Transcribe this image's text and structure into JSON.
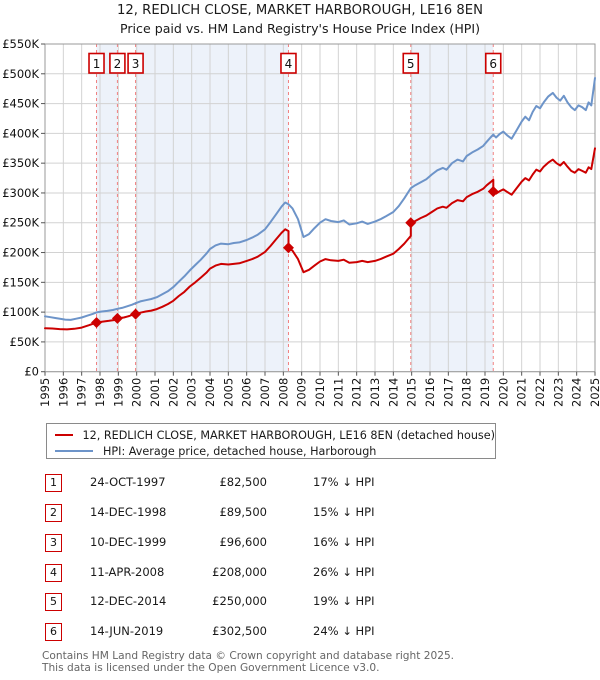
{
  "page": {
    "title": "12, REDLICH CLOSE, MARKET HARBOROUGH, LE16 8EN",
    "subtitle": "Price paid vs. HM Land Registry's House Price Index (HPI)"
  },
  "footer": {
    "line1": "Contains HM Land Registry data © Crown copyright and database right 2025.",
    "line2": "This data is licensed under the Open Government Licence v3.0."
  },
  "chart_data": {
    "type": "line",
    "title": "12, REDLICH CLOSE, MARKET HARBOROUGH, LE16 8EN",
    "subtitle": "Price paid vs. HM Land Registry's House Price Index (HPI)",
    "x_axis": {
      "years": [
        1995,
        1996,
        1997,
        1998,
        1999,
        2000,
        2001,
        2002,
        2003,
        2004,
        2005,
        2006,
        2007,
        2008,
        2009,
        2010,
        2011,
        2012,
        2013,
        2014,
        2015,
        2016,
        2017,
        2018,
        2019,
        2020,
        2021,
        2022,
        2023,
        2024,
        2025
      ],
      "range": [
        1995,
        2025
      ]
    },
    "y_axis": {
      "labels": [
        "£0",
        "£50K",
        "£100K",
        "£150K",
        "£200K",
        "£250K",
        "£300K",
        "£350K",
        "£400K",
        "£450K",
        "£500K",
        "£550K"
      ],
      "min_k": 0,
      "max_k": 550,
      "step_k": 50,
      "grid": true
    },
    "colors": {
      "property_line": "#cc0000",
      "hpi_line": "#6d94c9",
      "sale_marker": "#cc0000",
      "sale_dashed_line": "#f08080",
      "ownership_band": "#edf2fa",
      "grid_line": "#d2d2d2",
      "frame": "#999999",
      "badge_border": "#cc0000",
      "footer_text": "#666666"
    },
    "legend_position": "below-axis",
    "series": [
      {
        "name": "12, REDLICH CLOSE, MARKET HARBOROUGH, LE16 8EN (detached house)",
        "color_key": "property_line",
        "points": [
          [
            1995.0,
            73
          ],
          [
            1995.4,
            72.5
          ],
          [
            1995.8,
            71.5
          ],
          [
            1996.2,
            71
          ],
          [
            1996.6,
            72
          ],
          [
            1997.0,
            74
          ],
          [
            1997.4,
            78
          ],
          [
            1997.81,
            82.5
          ],
          [
            1998.1,
            84
          ],
          [
            1998.5,
            85.5
          ],
          [
            1998.95,
            87.5
          ],
          [
            1998.95,
            89.5
          ],
          [
            1999.3,
            91
          ],
          [
            1999.6,
            93.5
          ],
          [
            1999.94,
            97.5
          ],
          [
            1999.94,
            96.6
          ],
          [
            2000.2,
            99
          ],
          [
            2000.5,
            101
          ],
          [
            2000.8,
            102.5
          ],
          [
            2001.1,
            105
          ],
          [
            2001.4,
            109
          ],
          [
            2001.7,
            113.5
          ],
          [
            2002.0,
            119
          ],
          [
            2002.3,
            127
          ],
          [
            2002.6,
            134
          ],
          [
            2002.9,
            143
          ],
          [
            2003.2,
            150
          ],
          [
            2003.5,
            158
          ],
          [
            2003.8,
            166
          ],
          [
            2004.0,
            173
          ],
          [
            2004.3,
            178
          ],
          [
            2004.6,
            181
          ],
          [
            2005.0,
            180
          ],
          [
            2005.3,
            181
          ],
          [
            2005.6,
            182
          ],
          [
            2006.0,
            186
          ],
          [
            2006.3,
            189
          ],
          [
            2006.6,
            193
          ],
          [
            2007.0,
            201
          ],
          [
            2007.3,
            211
          ],
          [
            2007.6,
            222
          ],
          [
            2007.9,
            233
          ],
          [
            2008.1,
            239
          ],
          [
            2008.28,
            236
          ],
          [
            2008.28,
            208
          ],
          [
            2008.5,
            203
          ],
          [
            2008.8,
            189
          ],
          [
            2009.1,
            167
          ],
          [
            2009.4,
            171
          ],
          [
            2009.7,
            178
          ],
          [
            2010.0,
            185
          ],
          [
            2010.3,
            189
          ],
          [
            2010.6,
            187
          ],
          [
            2011.0,
            186
          ],
          [
            2011.3,
            188
          ],
          [
            2011.6,
            183
          ],
          [
            2012.0,
            184
          ],
          [
            2012.3,
            186
          ],
          [
            2012.6,
            184
          ],
          [
            2013.0,
            186
          ],
          [
            2013.3,
            189
          ],
          [
            2013.6,
            193
          ],
          [
            2014.0,
            198
          ],
          [
            2014.3,
            206
          ],
          [
            2014.6,
            215
          ],
          [
            2014.95,
            228
          ],
          [
            2014.95,
            250
          ],
          [
            2015.2,
            253
          ],
          [
            2015.5,
            258
          ],
          [
            2015.8,
            262
          ],
          [
            2016.1,
            268
          ],
          [
            2016.4,
            274
          ],
          [
            2016.7,
            277
          ],
          [
            2016.9,
            275
          ],
          [
            2017.2,
            283
          ],
          [
            2017.5,
            288
          ],
          [
            2017.8,
            286
          ],
          [
            2018.0,
            293
          ],
          [
            2018.3,
            298
          ],
          [
            2018.6,
            302
          ],
          [
            2018.9,
            307
          ],
          [
            2019.1,
            313
          ],
          [
            2019.3,
            318
          ],
          [
            2019.45,
            322
          ],
          [
            2019.45,
            302.5
          ],
          [
            2019.6,
            299
          ],
          [
            2019.8,
            303
          ],
          [
            2020.0,
            306
          ],
          [
            2020.2,
            302
          ],
          [
            2020.45,
            297
          ],
          [
            2020.7,
            307
          ],
          [
            2021.0,
            319
          ],
          [
            2021.2,
            325
          ],
          [
            2021.4,
            321
          ],
          [
            2021.6,
            331
          ],
          [
            2021.8,
            339
          ],
          [
            2022.0,
            336
          ],
          [
            2022.2,
            344
          ],
          [
            2022.45,
            351
          ],
          [
            2022.7,
            356
          ],
          [
            2022.9,
            350
          ],
          [
            2023.1,
            346
          ],
          [
            2023.3,
            352
          ],
          [
            2023.5,
            344
          ],
          [
            2023.7,
            337
          ],
          [
            2023.9,
            334
          ],
          [
            2024.1,
            340
          ],
          [
            2024.3,
            337
          ],
          [
            2024.5,
            334
          ],
          [
            2024.65,
            343
          ],
          [
            2024.8,
            340
          ],
          [
            2025.0,
            375
          ]
        ]
      },
      {
        "name": "HPI: Average price, detached house, Harborough",
        "color_key": "hpi_line",
        "points": [
          [
            1995.0,
            93
          ],
          [
            1995.3,
            91.5
          ],
          [
            1995.6,
            90
          ],
          [
            1995.9,
            88.5
          ],
          [
            1996.1,
            87.5
          ],
          [
            1996.4,
            87
          ],
          [
            1996.7,
            89
          ],
          [
            1997.0,
            91
          ],
          [
            1997.3,
            94
          ],
          [
            1997.6,
            97
          ],
          [
            1997.81,
            99.5
          ],
          [
            1998.1,
            101
          ],
          [
            1998.4,
            102
          ],
          [
            1998.7,
            103.5
          ],
          [
            1998.95,
            105.5
          ],
          [
            1999.2,
            107
          ],
          [
            1999.5,
            110
          ],
          [
            1999.75,
            112.5
          ],
          [
            1999.94,
            115
          ],
          [
            2000.2,
            118
          ],
          [
            2000.5,
            120
          ],
          [
            2000.8,
            122
          ],
          [
            2001.1,
            125
          ],
          [
            2001.4,
            130
          ],
          [
            2001.7,
            135
          ],
          [
            2002.0,
            142
          ],
          [
            2002.3,
            151
          ],
          [
            2002.6,
            160
          ],
          [
            2002.9,
            170
          ],
          [
            2003.2,
            179
          ],
          [
            2003.5,
            188
          ],
          [
            2003.8,
            198
          ],
          [
            2004.0,
            206
          ],
          [
            2004.3,
            212
          ],
          [
            2004.6,
            215
          ],
          [
            2005.0,
            214
          ],
          [
            2005.3,
            216
          ],
          [
            2005.6,
            217
          ],
          [
            2006.0,
            221
          ],
          [
            2006.3,
            225
          ],
          [
            2006.6,
            230
          ],
          [
            2007.0,
            239
          ],
          [
            2007.3,
            251
          ],
          [
            2007.6,
            264
          ],
          [
            2007.9,
            277
          ],
          [
            2008.1,
            284
          ],
          [
            2008.28,
            281
          ],
          [
            2008.5,
            274
          ],
          [
            2008.8,
            256
          ],
          [
            2009.1,
            226
          ],
          [
            2009.4,
            231
          ],
          [
            2009.7,
            241
          ],
          [
            2010.0,
            250
          ],
          [
            2010.3,
            256
          ],
          [
            2010.6,
            253
          ],
          [
            2011.0,
            251
          ],
          [
            2011.3,
            254
          ],
          [
            2011.6,
            247
          ],
          [
            2012.0,
            249
          ],
          [
            2012.3,
            252
          ],
          [
            2012.6,
            248
          ],
          [
            2013.0,
            252
          ],
          [
            2013.3,
            256
          ],
          [
            2013.6,
            261
          ],
          [
            2014.0,
            268
          ],
          [
            2014.3,
            278
          ],
          [
            2014.6,
            291
          ],
          [
            2014.95,
            308
          ],
          [
            2015.2,
            313
          ],
          [
            2015.5,
            318
          ],
          [
            2015.8,
            323
          ],
          [
            2016.1,
            331
          ],
          [
            2016.4,
            338
          ],
          [
            2016.7,
            342
          ],
          [
            2016.9,
            339
          ],
          [
            2017.2,
            350
          ],
          [
            2017.5,
            356
          ],
          [
            2017.8,
            353
          ],
          [
            2018.0,
            362
          ],
          [
            2018.3,
            368
          ],
          [
            2018.6,
            373
          ],
          [
            2018.9,
            379
          ],
          [
            2019.1,
            386
          ],
          [
            2019.3,
            393
          ],
          [
            2019.45,
            398
          ],
          [
            2019.6,
            393
          ],
          [
            2019.8,
            399
          ],
          [
            2020.0,
            403
          ],
          [
            2020.2,
            397
          ],
          [
            2020.45,
            391
          ],
          [
            2020.7,
            404
          ],
          [
            2021.0,
            420
          ],
          [
            2021.2,
            428
          ],
          [
            2021.4,
            422
          ],
          [
            2021.6,
            436
          ],
          [
            2021.8,
            446
          ],
          [
            2022.0,
            442
          ],
          [
            2022.2,
            452
          ],
          [
            2022.45,
            462
          ],
          [
            2022.7,
            468
          ],
          [
            2022.9,
            460
          ],
          [
            2023.1,
            455
          ],
          [
            2023.3,
            463
          ],
          [
            2023.5,
            452
          ],
          [
            2023.7,
            444
          ],
          [
            2023.9,
            439
          ],
          [
            2024.1,
            447
          ],
          [
            2024.3,
            444
          ],
          [
            2024.5,
            439
          ],
          [
            2024.65,
            452
          ],
          [
            2024.8,
            447
          ],
          [
            2025.0,
            493
          ]
        ]
      }
    ],
    "sales": [
      {
        "n": 1,
        "t": 1997.81,
        "date": "24-OCT-1997",
        "price": "£82,500",
        "price_k": 82.5,
        "delta": "17% ↓ HPI"
      },
      {
        "n": 2,
        "t": 1998.95,
        "date": "14-DEC-1998",
        "price": "£89,500",
        "price_k": 89.5,
        "delta": "15% ↓ HPI"
      },
      {
        "n": 3,
        "t": 1999.94,
        "date": "10-DEC-1999",
        "price": "£96,600",
        "price_k": 96.6,
        "delta": "16% ↓ HPI"
      },
      {
        "n": 4,
        "t": 2008.28,
        "date": "11-APR-2008",
        "price": "£208,000",
        "price_k": 208,
        "delta": "26% ↓ HPI"
      },
      {
        "n": 5,
        "t": 2014.95,
        "date": "12-DEC-2014",
        "price": "£250,000",
        "price_k": 250,
        "delta": "19% ↓ HPI"
      },
      {
        "n": 6,
        "t": 2019.45,
        "date": "14-JUN-2019",
        "price": "£302,500",
        "price_k": 302.5,
        "delta": "24% ↓ HPI"
      }
    ],
    "ownership_bands": [
      [
        1997.81,
        1998.95
      ],
      [
        1999.94,
        2008.28
      ],
      [
        2014.95,
        2019.45
      ]
    ]
  }
}
